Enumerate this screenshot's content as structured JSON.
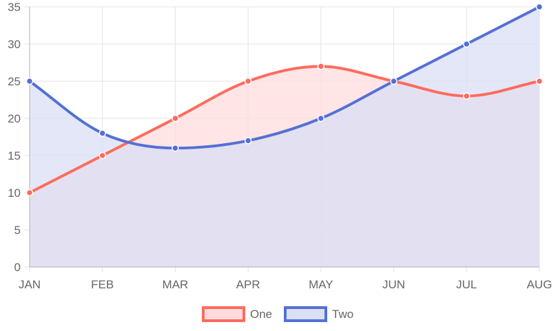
{
  "chart_data": {
    "type": "area",
    "categories": [
      "JAN",
      "FEB",
      "MAR",
      "APR",
      "MAY",
      "JUN",
      "JUL",
      "AUG"
    ],
    "series": [
      {
        "name": "One",
        "values": [
          10,
          15,
          20,
          25,
          27,
          25,
          23,
          25
        ],
        "stroke": "#ff6b5e",
        "fill": "#ffdcdc"
      },
      {
        "name": "Two",
        "values": [
          25,
          18,
          16,
          17,
          20,
          25,
          30,
          35
        ],
        "stroke": "#5470d6",
        "fill": "#dadff4"
      }
    ],
    "overlap_fill": "#e2cbd6",
    "title": "",
    "xlabel": "",
    "ylabel": "",
    "ylim": [
      0,
      35
    ],
    "yticks": [
      "0",
      "5",
      "10",
      "15",
      "20",
      "25",
      "30",
      "35"
    ],
    "grid": true,
    "legend": "bottom",
    "smoothing": "monotone"
  }
}
